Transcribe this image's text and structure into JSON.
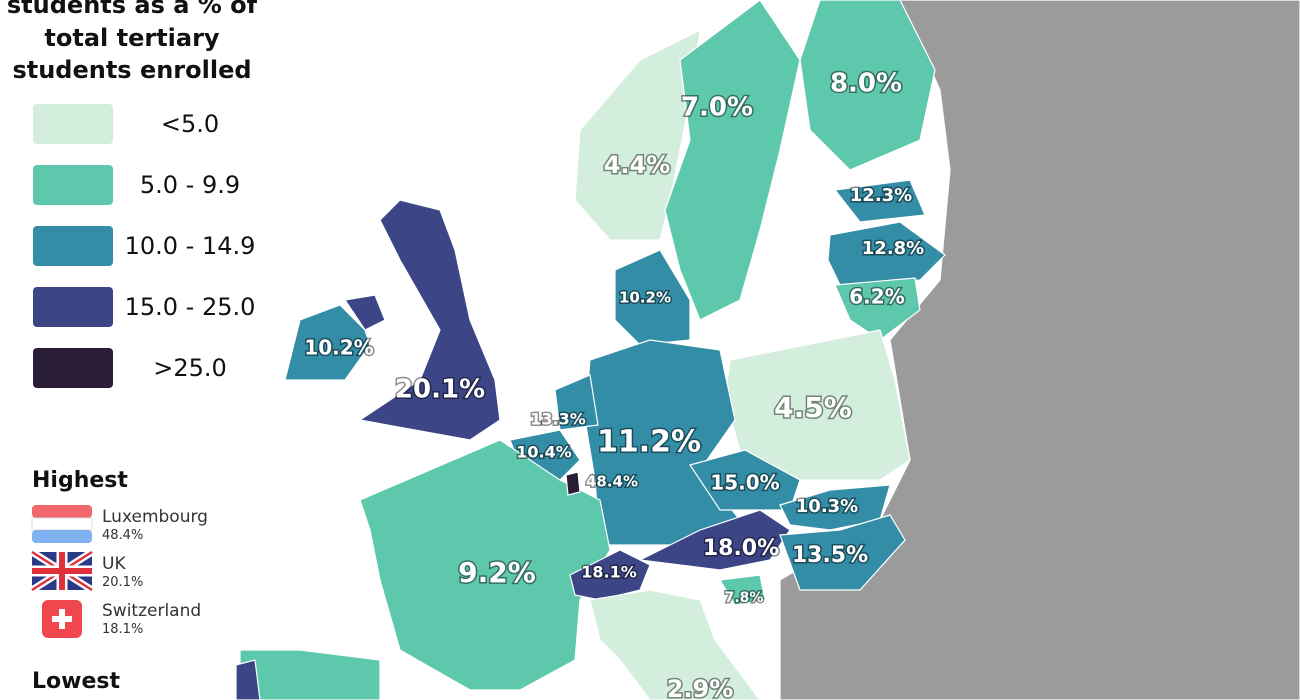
{
  "title_lines": [
    "students as a % of",
    "total tertiary",
    "students enrolled"
  ],
  "legend": [
    {
      "label": "<5.0",
      "color": "#d3eedc"
    },
    {
      "label": "5.0 - 9.9",
      "color": "#5ec8ad"
    },
    {
      "label": "10.0 - 14.9",
      "color": "#338da6"
    },
    {
      "label": "15.0 - 25.0",
      "color": "#3c4687"
    },
    {
      "label": ">25.0",
      "color": "#2a1e37"
    }
  ],
  "highest": {
    "heading": "Highest",
    "items": [
      {
        "name": "Luxembourg",
        "value": "48.4%"
      },
      {
        "name": "UK",
        "value": "20.1%"
      },
      {
        "name": "Switzerland",
        "value": "18.1%"
      }
    ]
  },
  "lowest": {
    "heading": "Lowest"
  },
  "map_labels": [
    "7.0%",
    "8.0%",
    "4.4%",
    "12.3%",
    "12.8%",
    "6.2%",
    "10.2%",
    "10.2%",
    "20.1%",
    "13.3%",
    "10.4%",
    "48.4%",
    "11.2%",
    "4.5%",
    "15.0%",
    "10.3%",
    "18.0%",
    "13.5%",
    "18.1%",
    "7.8%",
    "9.2%",
    "2.9%"
  ]
}
